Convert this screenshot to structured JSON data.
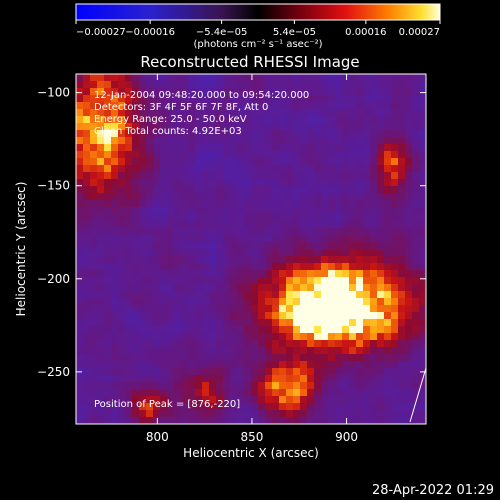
{
  "chart_data": {
    "type": "heatmap",
    "title": "Reconstructed RHESSI Image",
    "xlabel": "Heliocentric X (arcsec)",
    "ylabel": "Heliocentric Y (arcsec)",
    "xlim": [
      757,
      942
    ],
    "ylim": [
      -278,
      -90
    ],
    "x_ticks": [
      800,
      850,
      900
    ],
    "x_tick_labels": [
      "800",
      "850",
      "900"
    ],
    "y_ticks": [
      -100,
      -150,
      -200,
      -250
    ],
    "y_tick_labels": [
      "−100",
      "−150",
      "−200",
      "−250"
    ],
    "colorbar": {
      "range": [
        -0.00027,
        0.00027
      ],
      "tick_values": [
        -0.00027,
        -0.00016,
        -5.4e-05,
        5.4e-05,
        0.00016,
        0.00027
      ],
      "tick_labels": [
        "−0.00027",
        "−0.00016",
        "−5.4e−05",
        "5.4e−05",
        "0.00016",
        "0.00027"
      ],
      "unit_label": "(photons cm⁻² s⁻¹ asec⁻²)"
    },
    "annotations": [
      "12-Jan-2004 09:48:20.000 to 09:54:20.000",
      "Detectors: 3F 4F 5F 6F 7F 8F, Att 0",
      "Energy Range: 25.0 - 50.0 keV",
      "Clean     Total counts: 4.92E+03"
    ],
    "peak_label": "Position of Peak = [876,-220]",
    "peak": [
      876,
      -220
    ],
    "bright_regions": [
      {
        "x": 895,
        "y": -215,
        "sx": 24,
        "sy": 16,
        "amplitude": 1.0
      },
      {
        "x": 876,
        "y": -220,
        "sx": 6,
        "sy": 6,
        "amplitude": 0.35
      },
      {
        "x": 770,
        "y": -120,
        "sx": 14,
        "sy": 24,
        "amplitude": 0.6
      },
      {
        "x": 868,
        "y": -258,
        "sx": 10,
        "sy": 10,
        "amplitude": 0.55
      },
      {
        "x": 925,
        "y": -140,
        "sx": 6,
        "sy": 9,
        "amplitude": 0.45
      },
      {
        "x": 795,
        "y": -268,
        "sx": 7,
        "sy": 6,
        "amplitude": 0.4
      },
      {
        "x": 825,
        "y": -260,
        "sx": 8,
        "sy": 8,
        "amplitude": 0.35
      }
    ]
  },
  "footer": {
    "timestamp": "28-Apr-2022 01:29"
  }
}
